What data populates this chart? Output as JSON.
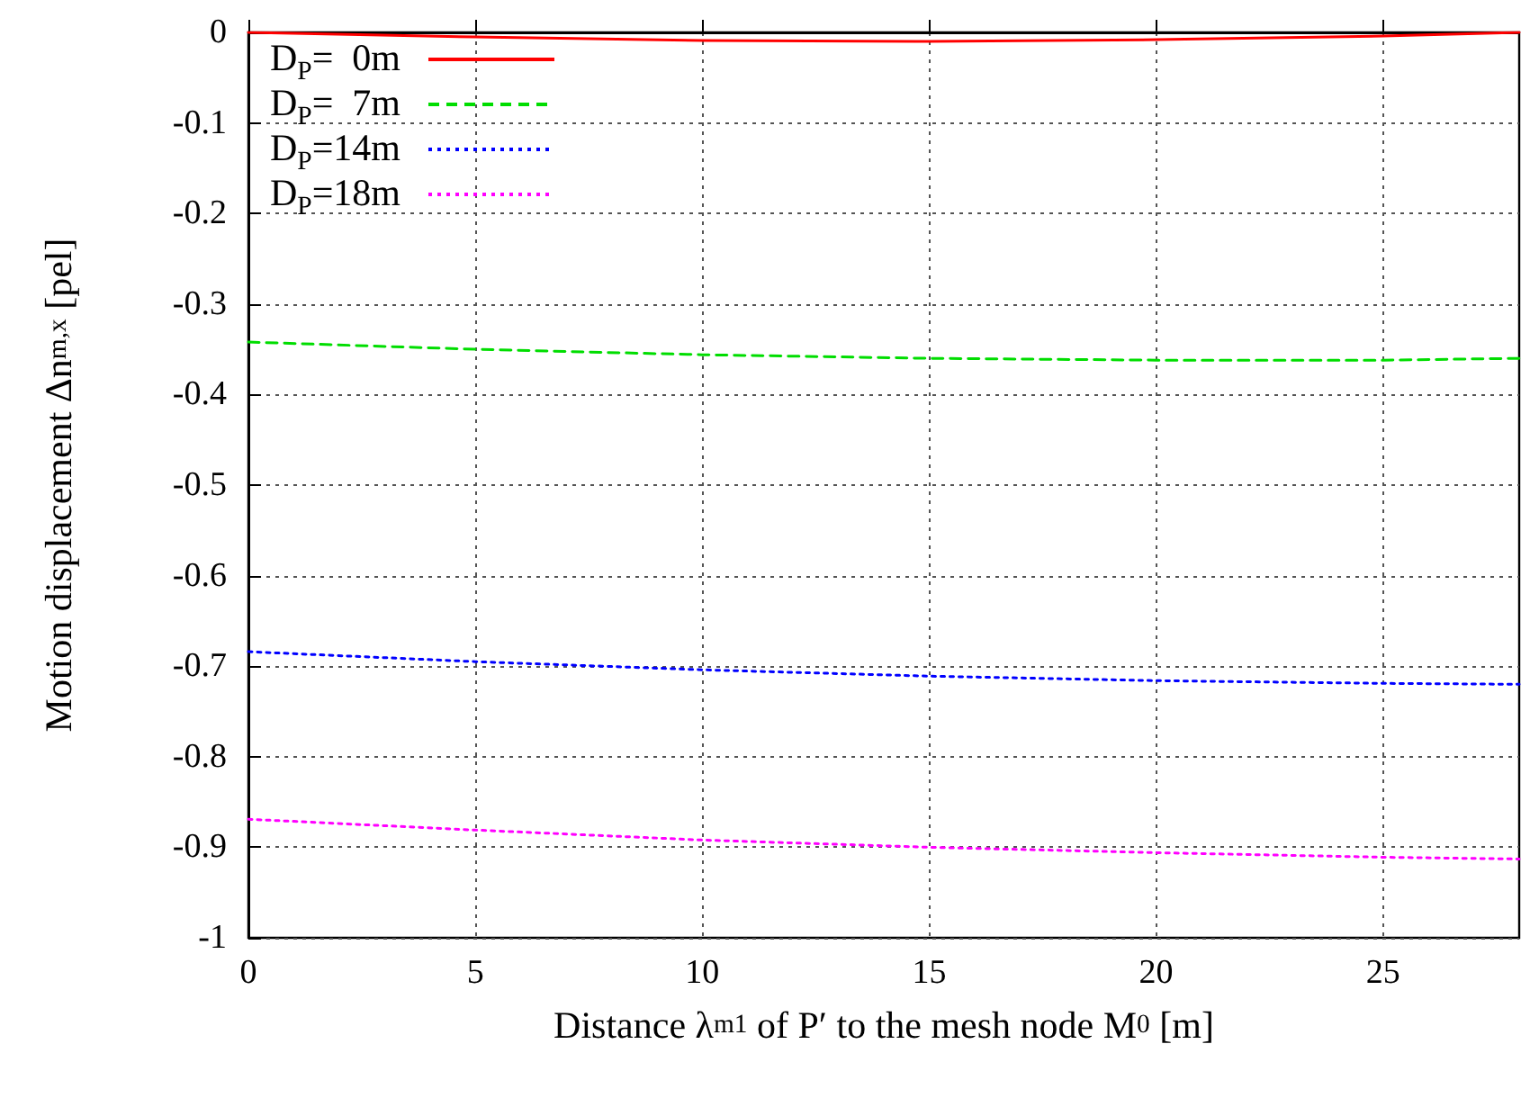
{
  "chart_data": {
    "type": "line",
    "xlabel": "Distance λ$_{m1}$ of P′ to the mesh node M$_{0}$ [m]",
    "ylabel": "Motion displacement Δn$_{m,x}$ [pel]",
    "x": [
      0,
      5,
      10,
      15,
      20,
      25,
      28
    ],
    "series": [
      {
        "name": "D$_{P}$=  0m",
        "color": "#ff0000",
        "line_style": "solid",
        "values": [
          0,
          -0.005,
          -0.009,
          -0.01,
          -0.008,
          -0.004,
          0
        ]
      },
      {
        "name": "D$_{P}$=  7m",
        "color": "#00dd00",
        "line_style": "dashed",
        "values": [
          -0.342,
          -0.35,
          -0.356,
          -0.36,
          -0.362,
          -0.362,
          -0.36
        ]
      },
      {
        "name": "D$_{P}$=14m",
        "color": "#0000ff",
        "line_style": "dotted",
        "values": [
          -0.684,
          -0.695,
          -0.704,
          -0.711,
          -0.716,
          -0.719,
          -0.72
        ]
      },
      {
        "name": "D$_{P}$=18m",
        "color": "#ff00ff",
        "line_style": "dotted",
        "values": [
          -0.869,
          -0.881,
          -0.892,
          -0.9,
          -0.906,
          -0.911,
          -0.913
        ]
      }
    ],
    "xlim": [
      0,
      28
    ],
    "xticks": [
      0,
      5,
      10,
      15,
      20,
      25
    ],
    "ylim": [
      -1,
      0
    ],
    "yticks": [
      -1,
      -0.9,
      -0.8,
      -0.7,
      -0.6,
      -0.5,
      -0.4,
      -0.3,
      -0.2,
      -0.1,
      0
    ],
    "grid": true,
    "legend": "top left",
    "marker": "none"
  }
}
